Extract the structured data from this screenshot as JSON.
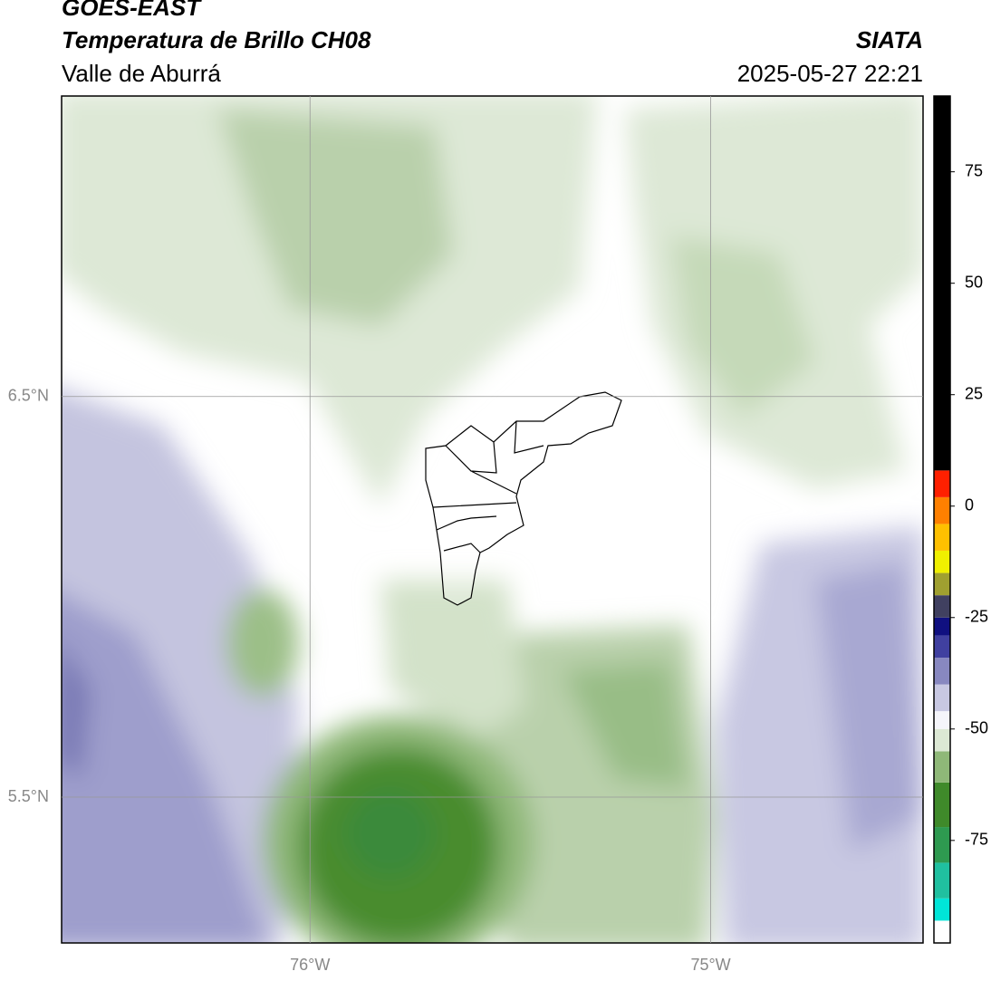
{
  "header": {
    "title": "GOES-EAST",
    "subtitle": "Temperatura de Brillo CH08",
    "region": "Valle de Aburrá",
    "source": "SIATA",
    "datetime": "2025-05-27 22:21"
  },
  "map": {
    "lonlim": [
      -76.62,
      -74.47
    ],
    "latlim": [
      5.136,
      7.25
    ],
    "lonticks": [
      {
        "value": -76,
        "label": "76°W"
      },
      {
        "value": -75,
        "label": "75°W"
      }
    ],
    "latticks": [
      {
        "value": 6.5,
        "label": "6.5°N"
      },
      {
        "value": 5.5,
        "label": "5.5°N"
      }
    ],
    "grid": true
  },
  "colorbar": {
    "lim": [
      -98,
      92
    ],
    "ticks": [
      75,
      50,
      25,
      0,
      -25,
      -50,
      -75
    ],
    "colors": [
      {
        "from": -98,
        "to": -93,
        "color": "#ffffff"
      },
      {
        "from": -93,
        "to": -88,
        "color": "#00e5d8"
      },
      {
        "from": -88,
        "to": -80,
        "color": "#20c0a0"
      },
      {
        "from": -80,
        "to": -72,
        "color": "#2e9a50"
      },
      {
        "from": -72,
        "to": -62,
        "color": "#3f8a2a"
      },
      {
        "from": -62,
        "to": -55,
        "color": "#8fb878"
      },
      {
        "from": -55,
        "to": -50,
        "color": "#dce8d4"
      },
      {
        "from": -50,
        "to": -46,
        "color": "#f5f5fa"
      },
      {
        "from": -46,
        "to": -40,
        "color": "#c8c8e2"
      },
      {
        "from": -40,
        "to": -34,
        "color": "#8888c0"
      },
      {
        "from": -34,
        "to": -29,
        "color": "#4040a0"
      },
      {
        "from": -29,
        "to": -25,
        "color": "#101080"
      },
      {
        "from": -25,
        "to": -20,
        "color": "#404060"
      },
      {
        "from": -20,
        "to": -15,
        "color": "#a0a030"
      },
      {
        "from": -15,
        "to": -10,
        "color": "#f0f000"
      },
      {
        "from": -10,
        "to": -4,
        "color": "#ffc000"
      },
      {
        "from": -4,
        "to": 2,
        "color": "#ff8000"
      },
      {
        "from": 2,
        "to": 8,
        "color": "#ff2000"
      },
      {
        "from": 8,
        "to": 92,
        "color": "#000000"
      }
    ]
  }
}
